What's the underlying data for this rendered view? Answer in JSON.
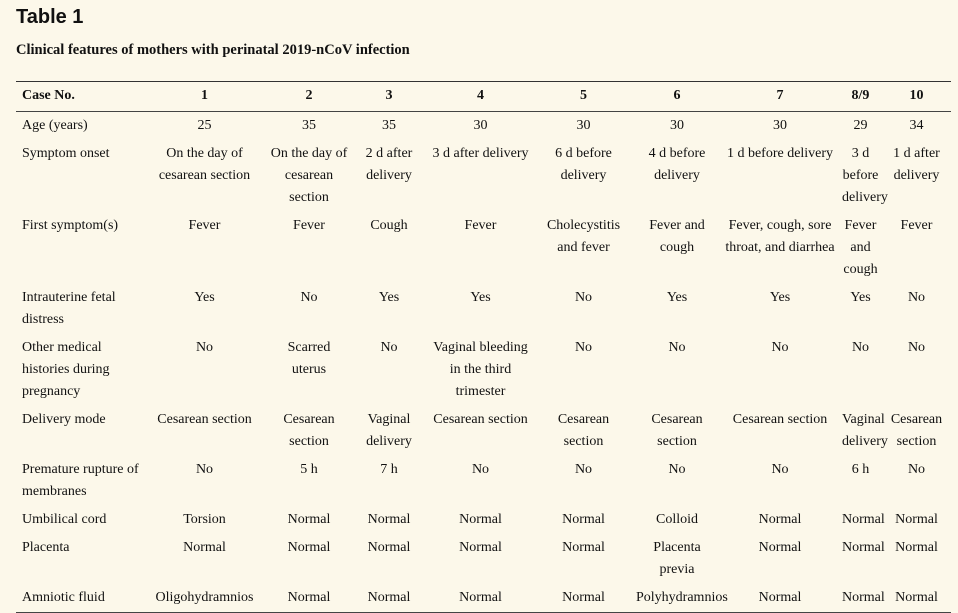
{
  "title": "Table 1",
  "caption": "Clinical features of mothers with perinatal 2019-nCoV infection",
  "header": [
    "Case No.",
    "1",
    "2",
    "3",
    "4",
    "5",
    "6",
    "7",
    "8/9",
    "10"
  ],
  "rows": [
    {
      "label": "Age (years)",
      "cells": [
        "25",
        "35",
        "35",
        "30",
        "30",
        "30",
        "30",
        "29",
        "34"
      ]
    },
    {
      "label": "Symptom onset",
      "cells": [
        "On the day of cesarean section",
        "On the day of cesarean section",
        "2 d after delivery",
        "3 d after delivery",
        "6 d before delivery",
        "4 d before delivery",
        "1 d before delivery",
        "3 d before delivery",
        "1 d after delivery"
      ]
    },
    {
      "label": "First symptom(s)",
      "cells": [
        "Fever",
        "Fever",
        "Cough",
        "Fever",
        "Cholecystitis and fever",
        "Fever and cough",
        "Fever, cough, sore throat, and diarrhea",
        "Fever and cough",
        "Fever"
      ]
    },
    {
      "label": "Intrauterine fetal distress",
      "cells": [
        "Yes",
        "No",
        "Yes",
        "Yes",
        "No",
        "Yes",
        "Yes",
        "Yes",
        "No"
      ]
    },
    {
      "label": "Other medical histories during pregnancy",
      "cells": [
        "No",
        "Scarred uterus",
        "No",
        "Vaginal bleeding in the third trimester",
        "No",
        "No",
        "No",
        "No",
        "No"
      ]
    },
    {
      "label": "Delivery mode",
      "cells": [
        "Cesarean section",
        "Cesarean section",
        "Vaginal delivery",
        "Cesarean section",
        "Cesarean section",
        "Cesarean section",
        "Cesarean section",
        "Vaginal delivery",
        "Cesarean section"
      ]
    },
    {
      "label": "Premature rupture of membranes",
      "cells": [
        "No",
        "5 h",
        "7 h",
        "No",
        "No",
        "No",
        "No",
        "6 h",
        "No"
      ]
    },
    {
      "label": "Umbilical cord",
      "cells": [
        "Torsion",
        "Normal",
        "Normal",
        "Normal",
        "Normal",
        "Colloid",
        "Normal",
        "Normal",
        "Normal"
      ]
    },
    {
      "label": "Placenta",
      "cells": [
        "Normal",
        "Normal",
        "Normal",
        "Normal",
        "Normal",
        "Placenta previa",
        "Normal",
        "Normal",
        "Normal"
      ]
    },
    {
      "label": "Amniotic fluid",
      "cells": [
        "Oligohydramnios",
        "Normal",
        "Normal",
        "Normal",
        "Normal",
        "Polyhydramnios",
        "Normal",
        "Normal",
        "Normal"
      ]
    }
  ]
}
